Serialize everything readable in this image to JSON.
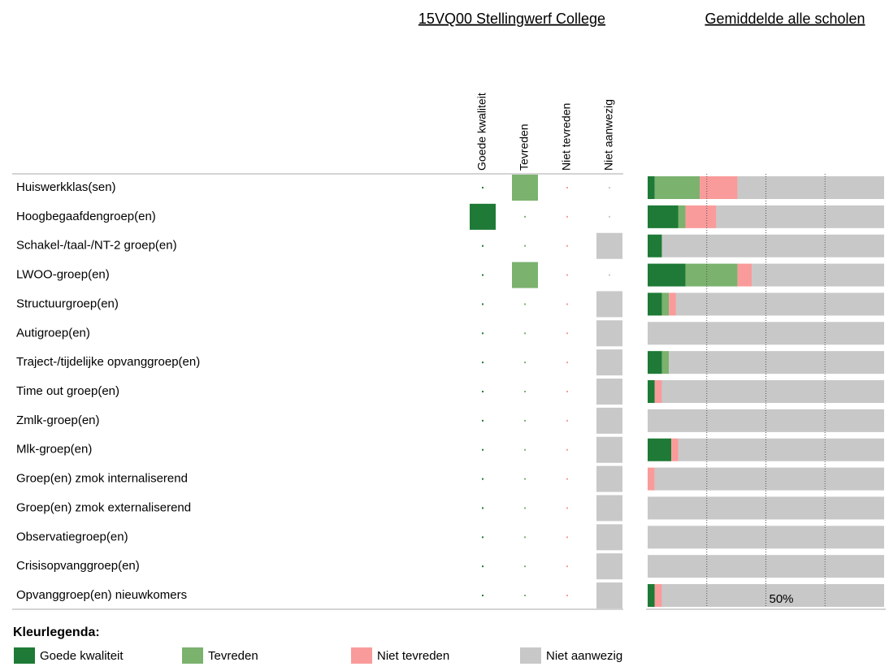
{
  "chart_data": {
    "type": "bar",
    "title": "15VQ00 Stellingwerf College",
    "subtitle": "Gemiddelde alle scholen",
    "categories": [
      "Huiswerkklas(sen)",
      "Hoogbegaafdengroep(en)",
      "Schakel-/taal-/NT-2 groep(en)",
      "LWOO-groep(en)",
      "Structuurgroep(en)",
      "Autigroep(en)",
      "Traject-/tijdelijke opvanggroep(en)",
      "Time out groep(en)",
      "Zmlk-groep(en)",
      "Mlk-groep(en)",
      "Groep(en) zmok internaliserend",
      "Groep(en) zmok externaliserend",
      "Observatiegroep(en)",
      "Crisisopvanggroep(en)",
      "Opvanggroep(en) nieuwkomers"
    ],
    "series": [
      {
        "name": "Goede kwaliteit",
        "color": "#1e7a36",
        "school_values": [
          0,
          1,
          0,
          0,
          0,
          0,
          0,
          0,
          0,
          0,
          0,
          0,
          0,
          0,
          0
        ],
        "values": [
          3,
          13,
          6,
          16,
          6,
          0,
          6,
          3,
          0,
          10,
          0,
          0,
          0,
          0,
          3
        ]
      },
      {
        "name": "Tevreden",
        "color": "#7bb26e",
        "school_values": [
          1,
          0,
          0,
          1,
          0,
          0,
          0,
          0,
          0,
          0,
          0,
          0,
          0,
          0,
          0
        ],
        "values": [
          19,
          3,
          0,
          22,
          3,
          0,
          3,
          0,
          0,
          0,
          0,
          0,
          0,
          0,
          0
        ]
      },
      {
        "name": "Niet tevreden",
        "color": "#f99b9b",
        "school_values": [
          0,
          0,
          0,
          0,
          0,
          0,
          0,
          0,
          0,
          0,
          0,
          0,
          0,
          0,
          0
        ],
        "values": [
          16,
          13,
          0,
          6,
          3,
          0,
          0,
          3,
          0,
          3,
          3,
          0,
          0,
          0,
          3
        ]
      },
      {
        "name": "Niet aanwezig",
        "color": "#c8c8c8",
        "school_values": [
          0,
          0,
          1,
          0,
          1,
          1,
          1,
          1,
          1,
          1,
          1,
          1,
          1,
          1,
          1
        ],
        "values": [
          62,
          71,
          94,
          56,
          88,
          100,
          91,
          94,
          100,
          87,
          97,
          100,
          100,
          100,
          94
        ]
      }
    ],
    "xlim": [
      0,
      100
    ],
    "xgrid": [
      25,
      50,
      75
    ],
    "xticks": [
      {
        "value": 50,
        "label": "50%"
      }
    ],
    "legend_title": "Kleurlegenda:"
  }
}
